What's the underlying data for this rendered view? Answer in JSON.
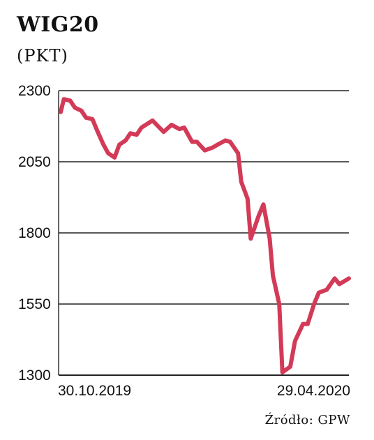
{
  "header": {
    "title": "WIG20",
    "unit": "(PKT)"
  },
  "source": "Źródło: GPW",
  "colors": {
    "line": "#d33a57",
    "grid": "#222222",
    "text": "#111111"
  },
  "chart_data": {
    "type": "line",
    "title": "WIG20",
    "ylabel": "(PKT)",
    "xlabel": "",
    "ylim": [
      1300,
      2300
    ],
    "yticks": [
      2300,
      2050,
      1800,
      1550,
      1300
    ],
    "xticks": [
      "30.10.2019",
      "29.04.2020"
    ],
    "grid": true,
    "x": [
      "2019-10-30",
      "2019-11-01",
      "2019-11-05",
      "2019-11-08",
      "2019-11-12",
      "2019-11-15",
      "2019-11-19",
      "2019-11-22",
      "2019-11-26",
      "2019-11-29",
      "2019-12-03",
      "2019-12-06",
      "2019-12-10",
      "2019-12-13",
      "2019-12-17",
      "2019-12-20",
      "2019-12-27",
      "2020-01-03",
      "2020-01-08",
      "2020-01-13",
      "2020-01-16",
      "2020-01-21",
      "2020-01-24",
      "2020-01-29",
      "2020-02-03",
      "2020-02-06",
      "2020-02-11",
      "2020-02-14",
      "2020-02-19",
      "2020-02-21",
      "2020-02-25",
      "2020-02-27",
      "2020-03-03",
      "2020-03-06",
      "2020-03-10",
      "2020-03-12",
      "2020-03-16",
      "2020-03-18",
      "2020-03-23",
      "2020-03-26",
      "2020-03-31",
      "2020-04-03",
      "2020-04-07",
      "2020-04-10",
      "2020-04-15",
      "2020-04-20",
      "2020-04-23",
      "2020-04-29"
    ],
    "series": [
      {
        "values": [
          2225,
          2270,
          2265,
          2240,
          2230,
          2205,
          2200,
          2160,
          2110,
          2080,
          2065,
          2110,
          2125,
          2150,
          2145,
          2170,
          2195,
          2155,
          2180,
          2165,
          2170,
          2120,
          2120,
          2090,
          2100,
          2110,
          2125,
          2120,
          2080,
          1980,
          1920,
          1780,
          1860,
          1900,
          1780,
          1650,
          1550,
          1310,
          1330,
          1420,
          1480,
          1480,
          1550,
          1590,
          1600,
          1640,
          1620,
          1640
        ]
      }
    ]
  }
}
